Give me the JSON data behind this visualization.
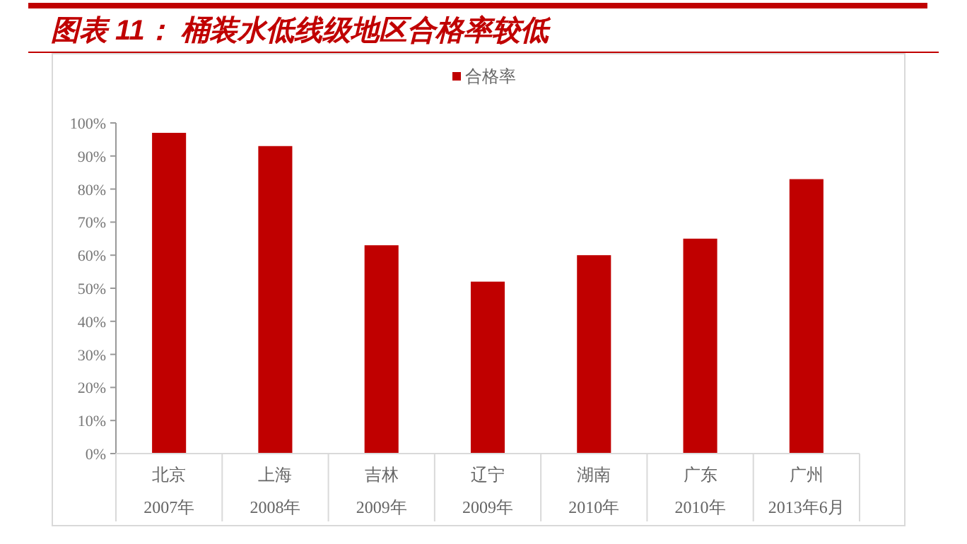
{
  "chart_data": {
    "type": "bar",
    "title": "图表 11：  桶装水低线级地区合格率较低",
    "categories": [
      "北京\n2007年",
      "上海\n2008年",
      "吉林\n2009年",
      "辽宁\n2009年",
      "湖南\n2010年",
      "广东\n2010年",
      "广州\n2013年6月"
    ],
    "series": [
      {
        "name": "合格率",
        "color": "#c00000",
        "values": [
          97,
          93,
          63,
          52,
          60,
          65,
          83
        ]
      }
    ],
    "ylim": [
      0,
      100
    ],
    "yticks": [
      {
        "value": 0,
        "label": "0%"
      },
      {
        "value": 10,
        "label": "10%"
      },
      {
        "value": 20,
        "label": "20%"
      },
      {
        "value": 30,
        "label": "30%"
      },
      {
        "value": 40,
        "label": "40%"
      },
      {
        "value": 50,
        "label": "50%"
      },
      {
        "value": 60,
        "label": "60%"
      },
      {
        "value": 70,
        "label": "70%"
      },
      {
        "value": 80,
        "label": "80%"
      },
      {
        "value": 90,
        "label": "90%"
      },
      {
        "value": 100,
        "label": "100%"
      }
    ],
    "grid": false,
    "legend": "top"
  }
}
